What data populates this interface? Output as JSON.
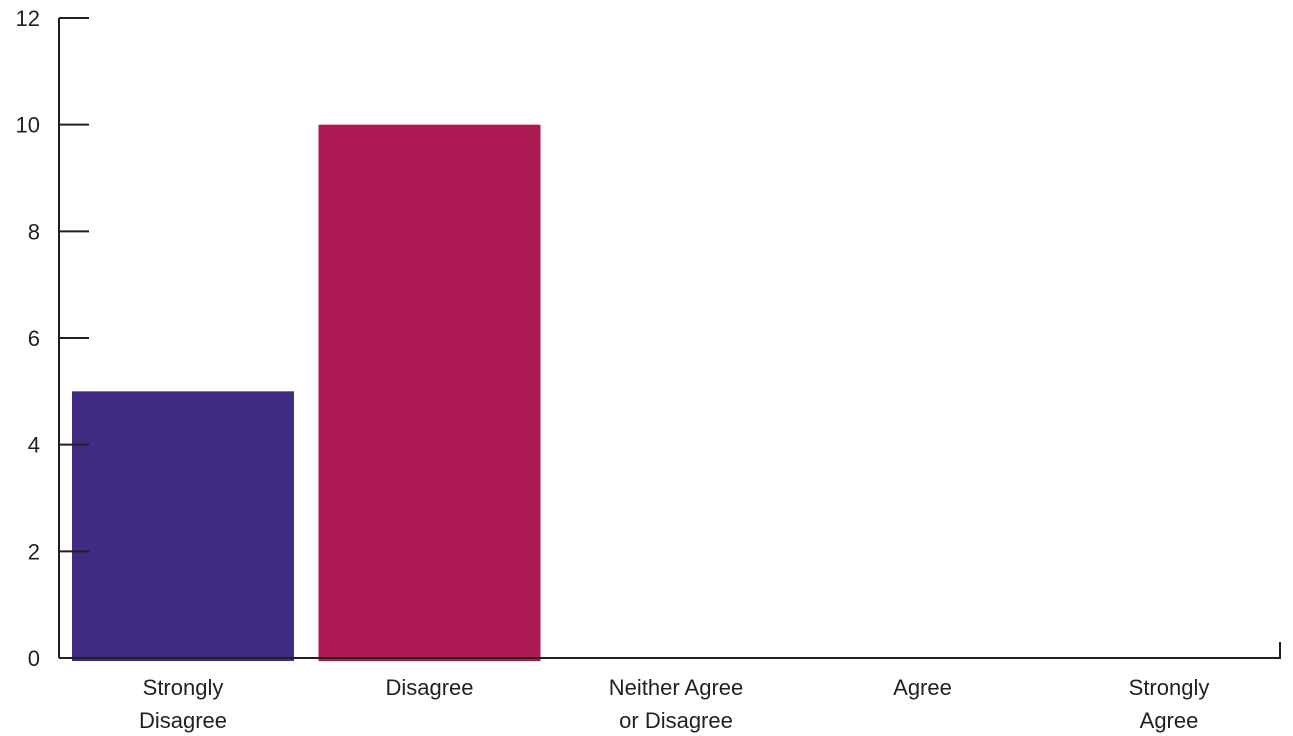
{
  "chart_data": {
    "type": "bar",
    "title": "",
    "xlabel": "",
    "ylabel": "",
    "categories": [
      [
        "Strongly",
        "Disagree"
      ],
      [
        "Disagree"
      ],
      [
        "Neither Agree",
        "or Disagree"
      ],
      [
        "Agree"
      ],
      [
        "Strongly",
        "Agree"
      ]
    ],
    "values": [
      5,
      10,
      0,
      0,
      0
    ],
    "colors": [
      "#3f2a84",
      "#ad1a53",
      "#cccccc",
      "#cccccc",
      "#cccccc"
    ],
    "ylim": [
      0,
      12
    ],
    "yticks": [
      0,
      2,
      4,
      6,
      8,
      10,
      12
    ],
    "grid": false,
    "legend": "none",
    "axis_color": "#231f20"
  }
}
